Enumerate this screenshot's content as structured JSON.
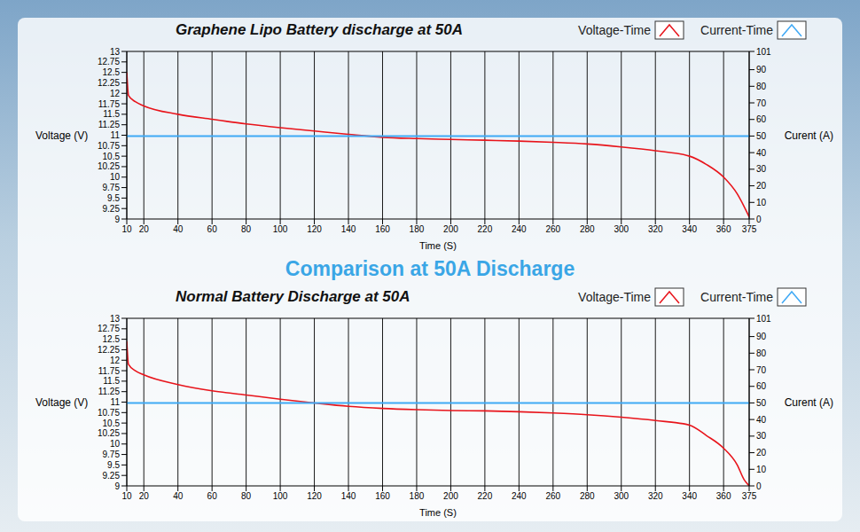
{
  "title": "Comparison at 50A Discharge",
  "chart_data": [
    {
      "type": "line",
      "title": "Graphene Lipo Battery discharge at 50A",
      "xlabel": "Time (S)",
      "ylabel": "Voltage (V)",
      "y2label": "Curent (A)",
      "x": [
        10,
        11,
        15,
        20,
        40,
        60,
        80,
        100,
        120,
        140,
        160,
        180,
        200,
        220,
        240,
        260,
        280,
        300,
        320,
        340,
        350,
        360,
        368,
        372,
        375
      ],
      "series": [
        {
          "name": "Voltage-Time",
          "color": "#e8141b",
          "values": [
            12.5,
            11.95,
            11.8,
            11.7,
            11.5,
            11.38,
            11.27,
            11.18,
            11.1,
            11.02,
            10.95,
            10.92,
            10.9,
            10.88,
            10.86,
            10.83,
            10.79,
            10.72,
            10.63,
            10.5,
            10.3,
            10.0,
            9.6,
            9.3,
            9.05
          ]
        },
        {
          "name": "Current-Time",
          "color": "#3fa9f5",
          "axis": "y2",
          "values": [
            50,
            50,
            50,
            50,
            50,
            50,
            50,
            50,
            50,
            50,
            50,
            50,
            50,
            50,
            50,
            50,
            50,
            50,
            50,
            50,
            50,
            50,
            50,
            50,
            50
          ]
        }
      ],
      "xlim": [
        10,
        375
      ],
      "xticks": [
        10,
        20,
        40,
        60,
        80,
        100,
        120,
        140,
        160,
        180,
        200,
        220,
        240,
        260,
        280,
        300,
        320,
        340,
        360,
        375
      ],
      "ylim": [
        9,
        13
      ],
      "yticks": [
        9,
        9.25,
        9.5,
        9.75,
        10,
        10.25,
        10.5,
        10.75,
        11,
        11.25,
        11.5,
        11.75,
        12,
        12.25,
        12.5,
        12.75,
        13
      ],
      "y2lim": [
        0,
        101
      ],
      "y2ticks": [
        0,
        10,
        20,
        30,
        40,
        50,
        60,
        70,
        80,
        90,
        101
      ],
      "grid": "x",
      "legend": "top right"
    },
    {
      "type": "line",
      "title": "Normal Battery Discharge at 50A",
      "xlabel": "Time (S)",
      "ylabel": "Voltage (V)",
      "y2label": "Curent (A)",
      "x": [
        10,
        11,
        15,
        20,
        40,
        60,
        80,
        100,
        120,
        140,
        160,
        180,
        200,
        220,
        240,
        260,
        280,
        300,
        320,
        340,
        350,
        360,
        368,
        372,
        375
      ],
      "series": [
        {
          "name": "Voltage-Time",
          "color": "#e8141b",
          "values": [
            12.45,
            11.9,
            11.75,
            11.65,
            11.42,
            11.27,
            11.17,
            11.07,
            10.98,
            10.9,
            10.85,
            10.82,
            10.8,
            10.79,
            10.77,
            10.74,
            10.7,
            10.64,
            10.56,
            10.45,
            10.2,
            9.9,
            9.5,
            9.15,
            9.0
          ]
        },
        {
          "name": "Current-Time",
          "color": "#3fa9f5",
          "axis": "y2",
          "values": [
            50,
            50,
            50,
            50,
            50,
            50,
            50,
            50,
            50,
            50,
            50,
            50,
            50,
            50,
            50,
            50,
            50,
            50,
            50,
            50,
            50,
            50,
            50,
            50,
            50
          ]
        }
      ],
      "xlim": [
        10,
        375
      ],
      "xticks": [
        10,
        20,
        40,
        60,
        80,
        100,
        120,
        140,
        160,
        180,
        200,
        220,
        240,
        260,
        280,
        300,
        320,
        340,
        360,
        375
      ],
      "ylim": [
        9,
        13
      ],
      "yticks": [
        9,
        9.25,
        9.5,
        9.75,
        10,
        10.25,
        10.5,
        10.75,
        11,
        11.25,
        11.5,
        11.75,
        12,
        12.25,
        12.5,
        12.75,
        13
      ],
      "y2lim": [
        0,
        101
      ],
      "y2ticks": [
        0,
        10,
        20,
        30,
        40,
        50,
        60,
        70,
        80,
        90,
        101
      ],
      "grid": "x",
      "legend": "top right"
    }
  ]
}
